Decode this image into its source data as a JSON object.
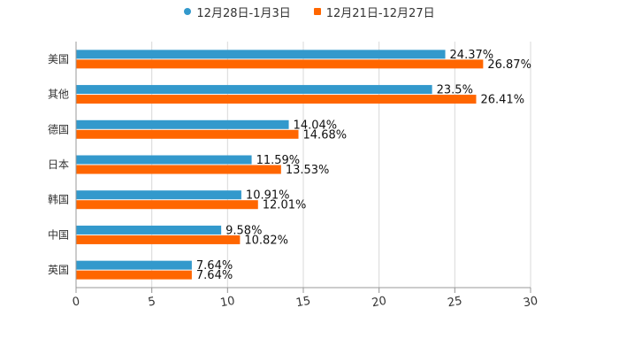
{
  "chart_data": {
    "type": "bar",
    "orientation": "horizontal",
    "categories": [
      "美国",
      "其他",
      "德国",
      "日本",
      "韩国",
      "中国",
      "英国"
    ],
    "series": [
      {
        "name": "12月28日-1月3日",
        "color": "#3399cc",
        "marker": "circle",
        "values": [
          24.37,
          23.5,
          14.04,
          11.59,
          10.91,
          9.58,
          7.64
        ],
        "labels": [
          "24.37%",
          "23.5%",
          "14.04%",
          "11.59%",
          "10.91%",
          "9.58%",
          "7.64%"
        ]
      },
      {
        "name": "12月21日-12月27日",
        "color": "#ff6600",
        "marker": "square",
        "values": [
          26.87,
          26.41,
          14.68,
          13.53,
          12.01,
          10.82,
          7.64
        ],
        "labels": [
          "26.87%",
          "26.41%",
          "14.68%",
          "13.53%",
          "12.01%",
          "10.82%",
          "7.64%"
        ]
      }
    ],
    "xlim": [
      0,
      30
    ],
    "xticks": [
      "0",
      "5",
      "10",
      "15",
      "20",
      "25",
      "30"
    ],
    "grid": true,
    "legend": "top-center",
    "title": "",
    "xlabel": "",
    "ylabel": ""
  }
}
